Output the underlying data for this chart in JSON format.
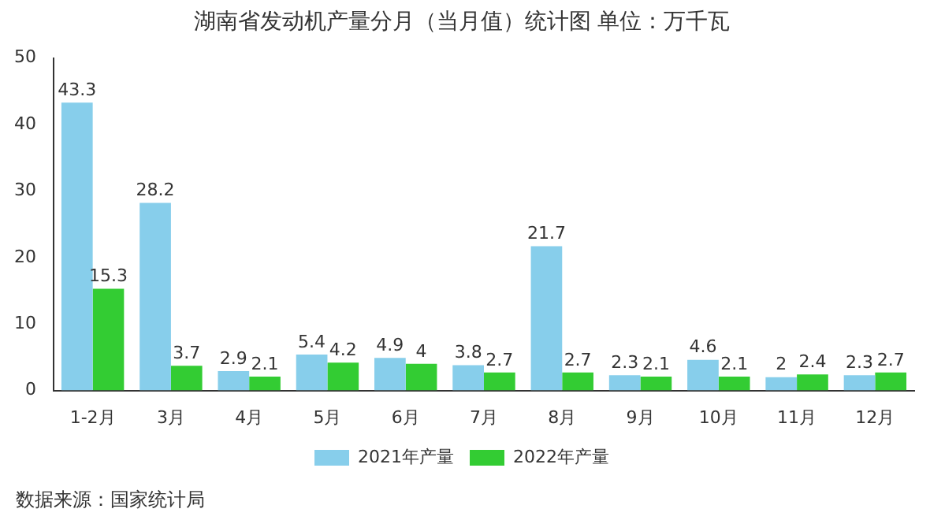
{
  "chart_data": {
    "type": "bar",
    "title": "湖南省发动机产量分月（当月值）统计图 单位：万千瓦",
    "categories": [
      "1-2月",
      "3月",
      "4月",
      "5月",
      "6月",
      "7月",
      "8月",
      "9月",
      "10月",
      "11月",
      "12月"
    ],
    "series": [
      {
        "name": "2021年产量",
        "color": "#87ceeb",
        "values": [
          43.3,
          28.2,
          2.9,
          5.4,
          4.9,
          3.8,
          21.7,
          2.3,
          4.6,
          2,
          2.3
        ]
      },
      {
        "name": "2022年产量",
        "color": "#33cc33",
        "values": [
          15.3,
          3.7,
          2.1,
          4.2,
          4,
          2.7,
          2.7,
          2.1,
          2.1,
          2.4,
          2.7
        ]
      }
    ],
    "ylim": [
      0,
      50
    ],
    "yticks": [
      0,
      10,
      20,
      30,
      40,
      50
    ],
    "grid": false,
    "legend": "bottom",
    "data_labels": true,
    "annotations": [
      "数据来源：国家统计局"
    ]
  }
}
